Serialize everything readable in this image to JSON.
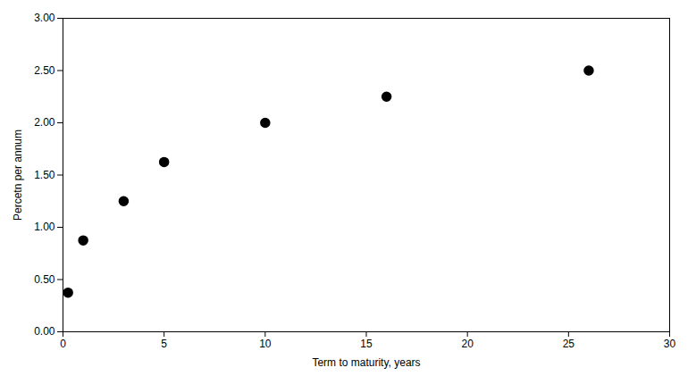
{
  "chart_data": {
    "type": "scatter",
    "x": [
      0.25,
      1,
      3,
      5,
      10,
      16,
      26
    ],
    "y": [
      0.375,
      0.875,
      1.25,
      1.625,
      2.0,
      2.25,
      2.5
    ],
    "xlabel": "Term to maturity, years",
    "ylabel": "Percetn per annum",
    "xlim": [
      0,
      30
    ],
    "ylim": [
      0.0,
      3.0
    ],
    "xticks": [
      0,
      5,
      10,
      15,
      20,
      25,
      30
    ],
    "yticks": [
      {
        "value": 0.0,
        "label": "0.00"
      },
      {
        "value": 0.5,
        "label": "0.50"
      },
      {
        "value": 1.0,
        "label": "1.00"
      },
      {
        "value": 1.5,
        "label": "1.50"
      },
      {
        "value": 2.0,
        "label": "2.00"
      },
      {
        "value": 2.5,
        "label": "2.50"
      },
      {
        "value": 3.0,
        "label": "3.00"
      }
    ],
    "color": "black",
    "marker": "circle",
    "grid": false
  }
}
